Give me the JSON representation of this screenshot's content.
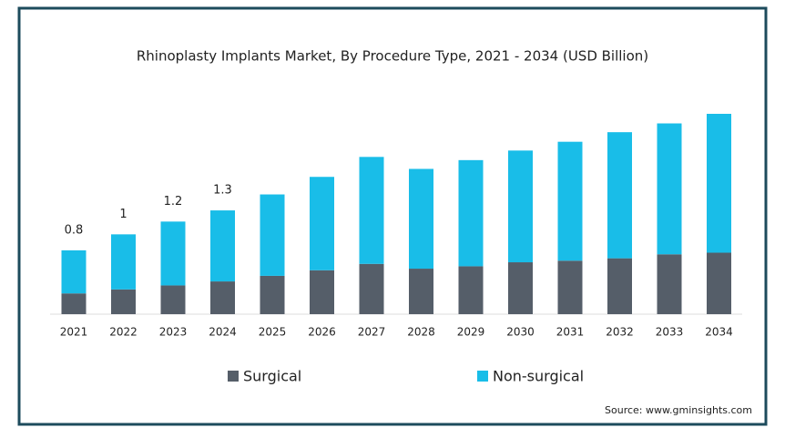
{
  "chart_data": {
    "type": "stacked_bar",
    "title": "Rhinoplasty Implants Market, By Procedure Type, 2021 - 2034 (USD Billion)",
    "categories": [
      "2021",
      "2022",
      "2023",
      "2024",
      "2025",
      "2026",
      "2027",
      "2028",
      "2029",
      "2030",
      "2031",
      "2032",
      "2033",
      "2034"
    ],
    "series": [
      {
        "name": "Surgical",
        "color": "#555e69",
        "values": [
          0.26,
          0.31,
          0.36,
          0.41,
          0.48,
          0.55,
          0.63,
          0.57,
          0.6,
          0.65,
          0.67,
          0.7,
          0.75,
          0.77
        ]
      },
      {
        "name": "Non-surgical",
        "color": "#19bde8",
        "values": [
          0.54,
          0.69,
          0.8,
          0.89,
          1.02,
          1.17,
          1.34,
          1.25,
          1.33,
          1.4,
          1.49,
          1.58,
          1.64,
          1.74
        ]
      }
    ],
    "totals": [
      0.8,
      1,
      1.2,
      1.3,
      null,
      null,
      null,
      null,
      null,
      null,
      null,
      null,
      null,
      null
    ],
    "source": "Source: www.gminsights.com"
  }
}
